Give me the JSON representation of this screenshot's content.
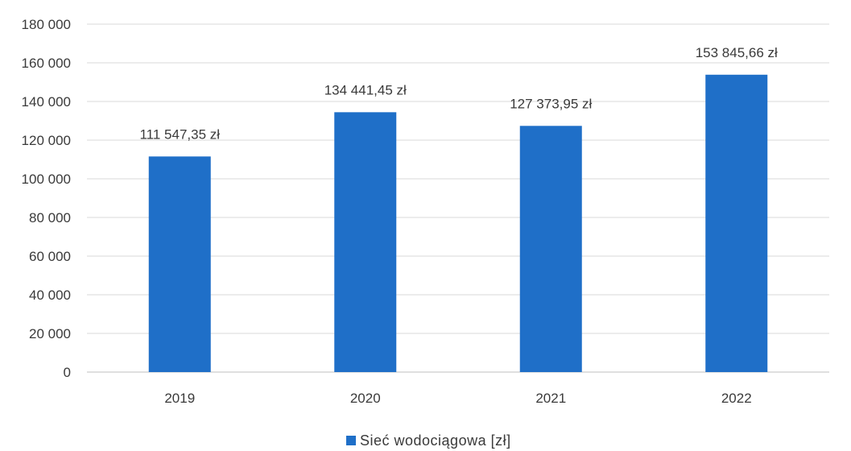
{
  "chart_data": {
    "type": "bar",
    "categories": [
      "2019",
      "2020",
      "2021",
      "2022"
    ],
    "series": [
      {
        "name": "Sieć wodociągowa [zł]",
        "values": [
          111547.35,
          134441.45,
          127373.95,
          153845.66
        ],
        "data_labels": [
          "111 547,35 zł",
          "134 441,45 zł",
          "127 373,95 zł",
          "153 845,66 zł"
        ],
        "color": "#1f6fc8"
      }
    ],
    "y_ticks": [
      0,
      20000,
      40000,
      60000,
      80000,
      100000,
      120000,
      140000,
      160000,
      180000
    ],
    "y_tick_labels": [
      "0",
      "20 000",
      "40 000",
      "60 000",
      "80 000",
      "100 000",
      "120 000",
      "140 000",
      "160 000",
      "180 000"
    ],
    "ylim": [
      0,
      180000
    ],
    "grid": true,
    "legend_position": "bottom"
  }
}
